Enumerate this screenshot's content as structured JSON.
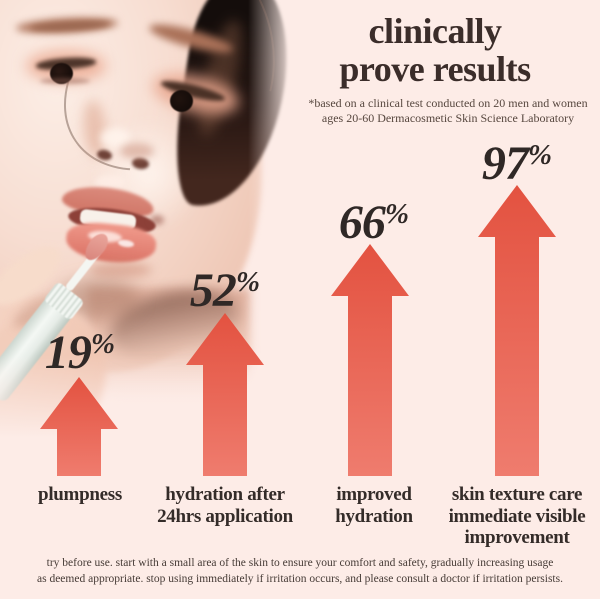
{
  "header": {
    "title": "clinically\nprove results",
    "subtitle": "*based on a clinical test conducted on 20 men and women\nages 20-60 Dermacosmetic Skin Science Laboratory"
  },
  "stats": [
    {
      "percent": "19",
      "symbol": "%",
      "label": "plumpness"
    },
    {
      "percent": "52",
      "symbol": "%",
      "label": "hydration after\n24hrs application"
    },
    {
      "percent": "66",
      "symbol": "%",
      "label": "improved\nhydration"
    },
    {
      "percent": "97",
      "symbol": "%",
      "label": "skin texture care\nimmediate visible\nimprovement"
    }
  ],
  "footer": {
    "disclaimer": "try before use. start with a small area of the skin to ensure your comfort and safety, gradually increasing usage\nas deemed appropriate. stop using immediately if irritation occurs, and please consult a doctor if irritation persists."
  },
  "photo": {
    "description": "close-up of a woman applying lip serum to her lips with a doe-foot applicator"
  },
  "colors": {
    "background": "#fdece7",
    "arrow_top": "#e35240",
    "arrow_bottom": "#ef7c6e",
    "heading_text": "#3b2d2a",
    "body_text": "#463b36"
  },
  "chart_data": {
    "type": "bar",
    "categories": [
      "plumpness",
      "hydration after 24hrs application",
      "improved hydration",
      "skin texture care immediate visible improvement"
    ],
    "values": [
      19,
      52,
      66,
      97
    ],
    "unit": "%",
    "title": "clinically prove results",
    "note": "*based on a clinical test conducted on 20 men and women ages 20-60 Dermacosmetic Skin Science Laboratory",
    "style": "upward coral gradient arrows, height proportional to value, baseline aligned"
  }
}
